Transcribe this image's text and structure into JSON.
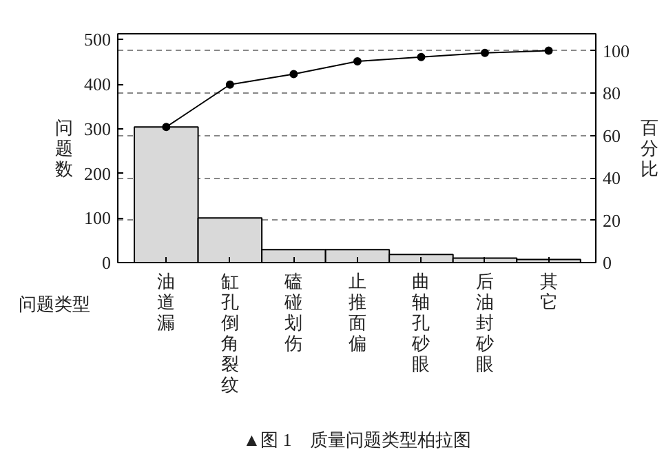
{
  "chart_data": {
    "type": "bar",
    "xlabel": "问题类型",
    "ylabel": "问题数",
    "y2label": "百分比",
    "categories": [
      "油道漏",
      "缸孔倒角裂纹",
      "磕碰划伤",
      "止推面偏",
      "曲轴孔砂眼",
      "后油封砂眼",
      "其它"
    ],
    "series": [
      {
        "color": "#d9d9d9",
        "values": [
          304,
          100,
          29,
          29,
          18,
          10,
          7
        ]
      },
      {
        "type": "line",
        "axis": "y2",
        "color": "#000000",
        "marker": "circle",
        "values": [
          64,
          84,
          89,
          95,
          97,
          99,
          100
        ]
      }
    ],
    "ylim": [
      0,
      513
    ],
    "yticks": [
      0,
      100,
      200,
      300,
      400,
      500
    ],
    "y2lim": [
      0,
      108
    ],
    "y2ticks": [
      0,
      20,
      40,
      60,
      80,
      100
    ],
    "grid": "y",
    "line_style": "solid",
    "annotations": [
      "▲图 1　质量问题类型柏拉图"
    ]
  }
}
